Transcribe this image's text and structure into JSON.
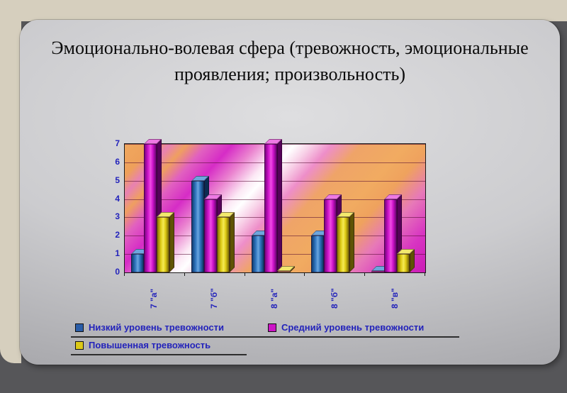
{
  "slide": {
    "title": "Эмоционально-волевая сфера (тревожность, эмоциональные проявления; произвольность)"
  },
  "theme": {
    "frame_color": "#d6cfbe",
    "outer_background": "#565659",
    "axis_text_color": "#2323bb",
    "legend_text_color": "#2323bb"
  },
  "chart_data": {
    "type": "bar",
    "title": "",
    "xlabel": "",
    "ylabel": "",
    "categories": [
      "7 \"а\"",
      "7 \"б\"",
      "8 \"а\"",
      "8 \"б\"",
      "8 \"в\""
    ],
    "series": [
      {
        "name": "Низкий уровень тревожности",
        "color": "#2a5da8",
        "values": [
          1,
          5,
          2,
          2,
          0
        ]
      },
      {
        "name": "Средний уровень тревожности",
        "color": "#cc14c6",
        "values": [
          7,
          4,
          7,
          4,
          4
        ]
      },
      {
        "name": "Повышенная тревожность",
        "color": "#dcc916",
        "values": [
          3,
          3,
          0,
          3,
          1
        ]
      }
    ],
    "ylim": [
      0,
      7
    ],
    "yticks": [
      0,
      1,
      2,
      3,
      4,
      5,
      6,
      7
    ],
    "grid": true,
    "effect": "3d",
    "legend_position": "bottom",
    "legend_rows": [
      [
        0,
        1
      ],
      [
        2
      ]
    ]
  }
}
